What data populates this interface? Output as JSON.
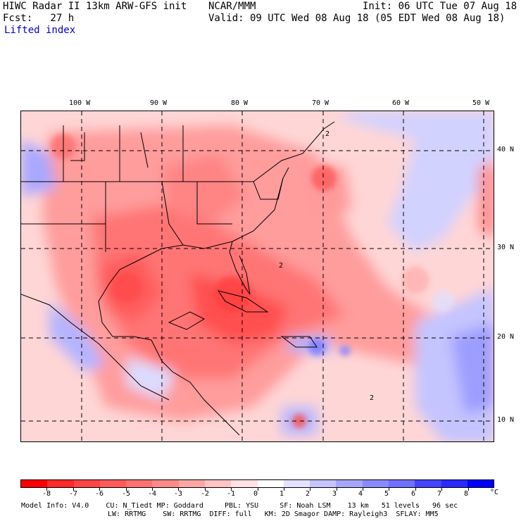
{
  "header": {
    "line1_left": "HIWC Radar II 13km ARW-GFS init",
    "line1_center": "NCAR/MMM",
    "line1_right": "Init: 06 UTC Tue 07 Aug 18",
    "line2_left": "Fcst:   27 h",
    "line2_right": "Valid: 09 UTC Wed 08 Aug 18 (05 EDT Wed 08 Aug 18)",
    "field_name": "Lifted index"
  },
  "map": {
    "lon_labels": [
      "100 W",
      "90 W",
      "80 W",
      "70 W",
      "60 W",
      "50 W"
    ],
    "lat_labels": [
      "40 N",
      "30 N",
      "20 N",
      "10 N"
    ],
    "contour_labels": [
      "2",
      "2",
      "2"
    ]
  },
  "colorbar": {
    "tick_labels": [
      "-8",
      "-7",
      "-6",
      "-5",
      "-4",
      "-3",
      "-2",
      "-1",
      "0",
      "1",
      "2",
      "3",
      "4",
      "5",
      "6",
      "7",
      "8"
    ],
    "unit": "°C",
    "colors": [
      "#ff0000",
      "#ff2a2a",
      "#ff4444",
      "#ff5a5a",
      "#ff7070",
      "#ff8a8a",
      "#ffa6a6",
      "#ffc4c4",
      "#ffe2e2",
      "#ffffff",
      "#e2e2ff",
      "#c4c4ff",
      "#a6a6ff",
      "#8a8aff",
      "#7070ff",
      "#4444ff",
      "#2a2aff",
      "#0000ff"
    ]
  },
  "footer": {
    "line1": "Model Info: V4.0    CU: N_Tiedt MP: Goddard     PBL: YSU     SF: Noah LSM    13 km   51 levels   96 sec",
    "line2": "LW: RRTMG    SW: RRTMG  DIFF: full   KM: 2D Smagor DAMP: Rayleigh3  SFLAY: MM5"
  }
}
